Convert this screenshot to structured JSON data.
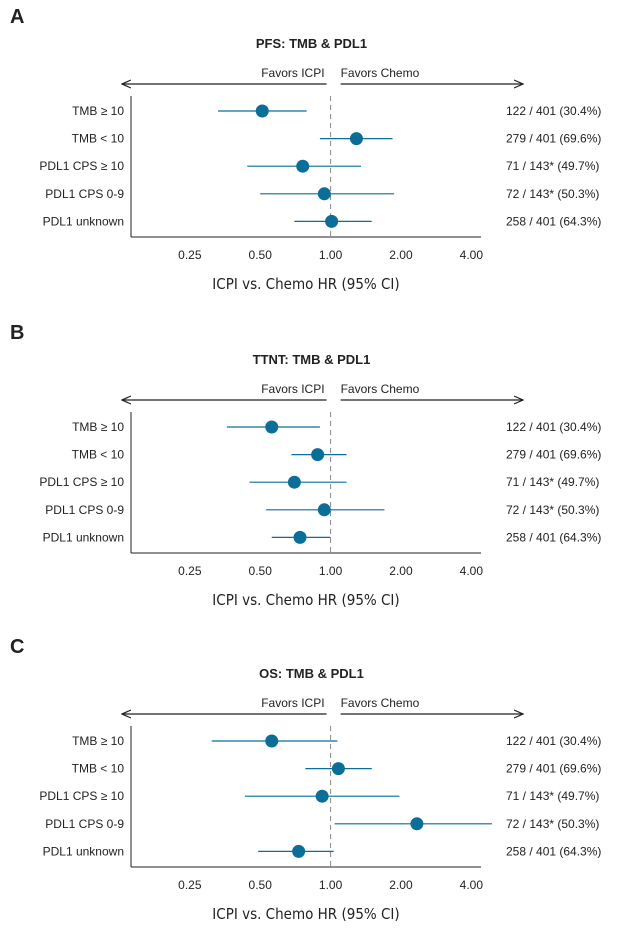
{
  "chart_data": [
    {
      "panel": "A",
      "type": "forest",
      "title": "PFS: TMB & PDL1",
      "favors_left": "Favors ICPI",
      "favors_right": "Favors Chemo",
      "xlabel": "ICPI vs. Chemo HR (95% CI)",
      "x_scale": "log2",
      "xlim": [
        0.14,
        4.4
      ],
      "ticks": [
        0.25,
        0.5,
        1.0,
        2.0,
        4.0
      ],
      "tick_labels": [
        "0.25",
        "0.50",
        "1.00",
        "2.00",
        "4.00"
      ],
      "reference_line": 1.0,
      "rows": [
        {
          "label": "TMB ≥ 10",
          "hr": 0.51,
          "lo": 0.33,
          "hi": 0.79,
          "n": "122 / 401 (30.4%)"
        },
        {
          "label": "TMB < 10",
          "hr": 1.29,
          "lo": 0.9,
          "hi": 1.84,
          "n": "279 / 401 (69.6%)"
        },
        {
          "label": "PDL1 CPS ≥ 10",
          "hr": 0.76,
          "lo": 0.44,
          "hi": 1.35,
          "n": "71 / 143* (49.7%)"
        },
        {
          "label": "PDL1 CPS 0-9",
          "hr": 0.94,
          "lo": 0.5,
          "hi": 1.87,
          "n": "72 / 143* (50.3%)"
        },
        {
          "label": "PDL1 unknown",
          "hr": 1.01,
          "lo": 0.7,
          "hi": 1.5,
          "n": "258 / 401 (64.3%)"
        }
      ]
    },
    {
      "panel": "B",
      "type": "forest",
      "title": "TTNT: TMB & PDL1",
      "favors_left": "Favors ICPI",
      "favors_right": "Favors Chemo",
      "xlabel": "ICPI vs. Chemo HR (95% CI)",
      "x_scale": "log2",
      "xlim": [
        0.14,
        4.4
      ],
      "ticks": [
        0.25,
        0.5,
        1.0,
        2.0,
        4.0
      ],
      "tick_labels": [
        "0.25",
        "0.50",
        "1.00",
        "2.00",
        "4.00"
      ],
      "reference_line": 1.0,
      "rows": [
        {
          "label": "TMB ≥ 10",
          "hr": 0.56,
          "lo": 0.36,
          "hi": 0.9,
          "n": "122 / 401 (30.4%)"
        },
        {
          "label": "TMB < 10",
          "hr": 0.88,
          "lo": 0.68,
          "hi": 1.17,
          "n": "279 / 401 (69.6%)"
        },
        {
          "label": "PDL1 CPS ≥ 10",
          "hr": 0.7,
          "lo": 0.45,
          "hi": 1.17,
          "n": "71 / 143* (49.7%)"
        },
        {
          "label": "PDL1 CPS 0-9",
          "hr": 0.94,
          "lo": 0.53,
          "hi": 1.7,
          "n": "72 / 143* (50.3%)"
        },
        {
          "label": "PDL1 unknown",
          "hr": 0.74,
          "lo": 0.56,
          "hi": 1.0,
          "n": "258 / 401 (64.3%)"
        }
      ]
    },
    {
      "panel": "C",
      "type": "forest",
      "title": "OS: TMB & PDL1",
      "favors_left": "Favors ICPI",
      "favors_right": "Favors Chemo",
      "xlabel": "ICPI vs. Chemo HR (95% CI)",
      "x_scale": "log2",
      "xlim": [
        0.14,
        4.4
      ],
      "ticks": [
        0.25,
        0.5,
        1.0,
        2.0,
        4.0
      ],
      "tick_labels": [
        "0.25",
        "0.50",
        "1.00",
        "2.00",
        "4.00"
      ],
      "reference_line": 1.0,
      "rows": [
        {
          "label": "TMB ≥ 10",
          "hr": 0.56,
          "lo": 0.31,
          "hi": 1.07,
          "n": "122 / 401 (30.4%)"
        },
        {
          "label": "TMB < 10",
          "hr": 1.08,
          "lo": 0.78,
          "hi": 1.5,
          "n": "279 / 401 (69.6%)"
        },
        {
          "label": "PDL1 CPS ≥ 10",
          "hr": 0.92,
          "lo": 0.43,
          "hi": 1.97,
          "n": "71 / 143* (49.7%)"
        },
        {
          "label": "PDL1 CPS 0-9",
          "hr": 2.34,
          "lo": 1.04,
          "hi": 4.9,
          "n": "72 / 143* (50.3%)"
        },
        {
          "label": "PDL1 unknown",
          "hr": 0.73,
          "lo": 0.49,
          "hi": 1.03,
          "n": "258 / 401 (64.3%)"
        }
      ]
    }
  ],
  "style": {
    "marker_color": "#0b6e99",
    "axis_color": "#222222",
    "ref_line_color": "#888888"
  }
}
